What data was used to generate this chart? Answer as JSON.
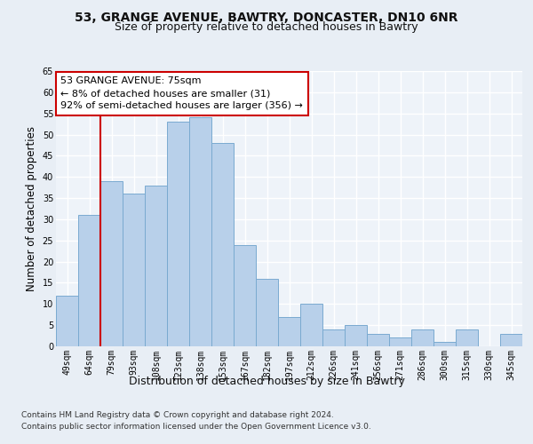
{
  "title1": "53, GRANGE AVENUE, BAWTRY, DONCASTER, DN10 6NR",
  "title2": "Size of property relative to detached houses in Bawtry",
  "xlabel": "Distribution of detached houses by size in Bawtry",
  "ylabel": "Number of detached properties",
  "categories": [
    "49sqm",
    "64sqm",
    "79sqm",
    "93sqm",
    "108sqm",
    "123sqm",
    "138sqm",
    "153sqm",
    "167sqm",
    "182sqm",
    "197sqm",
    "212sqm",
    "226sqm",
    "241sqm",
    "256sqm",
    "271sqm",
    "286sqm",
    "300sqm",
    "315sqm",
    "330sqm",
    "345sqm"
  ],
  "values": [
    12,
    31,
    39,
    36,
    38,
    53,
    54,
    48,
    24,
    16,
    7,
    10,
    4,
    5,
    3,
    2,
    4,
    1,
    4,
    0,
    3
  ],
  "bar_color": "#b8d0ea",
  "bar_edge_color": "#7aaad0",
  "vline_color": "#cc0000",
  "annotation_text": "53 GRANGE AVENUE: 75sqm\n← 8% of detached houses are smaller (31)\n92% of semi-detached houses are larger (356) →",
  "annotation_box_color": "#ffffff",
  "annotation_box_edge": "#cc0000",
  "ylim": [
    0,
    65
  ],
  "yticks": [
    0,
    5,
    10,
    15,
    20,
    25,
    30,
    35,
    40,
    45,
    50,
    55,
    60,
    65
  ],
  "footer1": "Contains HM Land Registry data © Crown copyright and database right 2024.",
  "footer2": "Contains public sector information licensed under the Open Government Licence v3.0.",
  "bg_color": "#e8eef5",
  "plot_bg_color": "#eef3f9",
  "grid_color": "#ffffff",
  "title_fontsize": 10,
  "subtitle_fontsize": 9,
  "tick_fontsize": 7,
  "ylabel_fontsize": 8.5,
  "xlabel_fontsize": 9,
  "annotation_fontsize": 8
}
